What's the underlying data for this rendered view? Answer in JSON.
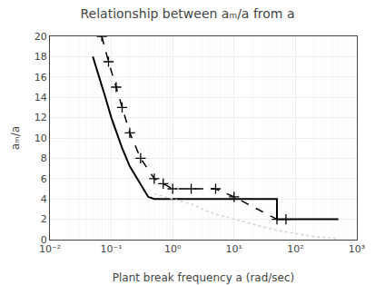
{
  "chart_data": {
    "type": "line",
    "title": "Relationship between aₘ/a from a",
    "x_label": "Plant break frequency a (rad/sec)",
    "y_label": "aₘ/a",
    "log": "x",
    "grid": true,
    "xlim": [
      0.01,
      1000
    ],
    "ylim": [
      0,
      20
    ],
    "xticks": [
      {
        "value": 0.01,
        "label": "10⁻²"
      },
      {
        "value": 0.1,
        "label": "10⁻¹"
      },
      {
        "value": 1,
        "label": "10⁰"
      },
      {
        "value": 10,
        "label": "10¹"
      },
      {
        "value": 100,
        "label": "10²"
      },
      {
        "value": 1000,
        "label": "10³"
      }
    ],
    "yticks": [
      0,
      2,
      4,
      6,
      8,
      10,
      12,
      14,
      16,
      18,
      20
    ],
    "series": [
      {
        "color": "black",
        "line_style": "solid",
        "x": [
          0.05,
          0.06,
          0.08,
          0.1,
          0.15,
          0.2,
          0.3,
          0.4,
          0.5,
          1.0,
          5.0,
          10.0,
          50.0,
          50.01,
          100.0,
          500.0
        ],
        "values": [
          18.0,
          16.5,
          14.0,
          12.0,
          9.0,
          7.2,
          5.5,
          4.2,
          4.0,
          4.0,
          4.0,
          4.0,
          4.0,
          2.0,
          2.0,
          2.0
        ]
      },
      {
        "color": "black",
        "line_style": "dash",
        "marker": "plus",
        "x": [
          0.07,
          0.09,
          0.12,
          0.15,
          0.2,
          0.3,
          0.5,
          0.7,
          1.0,
          2.0,
          5.0,
          10.0,
          50.0,
          70.0
        ],
        "values": [
          20.0,
          17.5,
          15.0,
          13.0,
          10.5,
          8.0,
          6.0,
          5.5,
          5.0,
          5.0,
          5.0,
          4.2,
          2.0,
          2.0
        ]
      },
      {
        "color": "lightgray",
        "line_style": "dot",
        "x": [
          0.5,
          1.0,
          2.0,
          3.0,
          5.0,
          10.0,
          20.0,
          50.0,
          100.0,
          200.0,
          500.0
        ],
        "values": [
          4.5,
          4.0,
          3.5,
          3.0,
          2.5,
          2.0,
          1.5,
          0.9,
          0.6,
          0.3,
          0.1
        ]
      }
    ]
  }
}
